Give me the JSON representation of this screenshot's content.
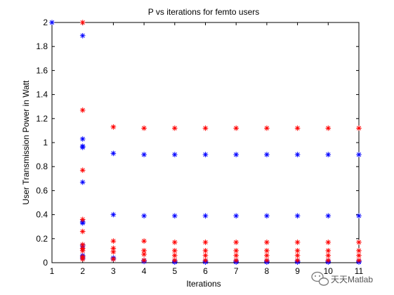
{
  "chart_data": {
    "type": "scatter",
    "title": "P vs iterations for femto users",
    "xlabel": "Iterations",
    "ylabel": "User Transmission Power in Watt",
    "xlim": [
      1,
      11
    ],
    "ylim": [
      0,
      2
    ],
    "xticks": [
      1,
      2,
      3,
      4,
      5,
      6,
      7,
      8,
      9,
      10,
      11
    ],
    "yticks": [
      0,
      0.2,
      0.4,
      0.6,
      0.8,
      1,
      1.2,
      1.4,
      1.6,
      1.8,
      2
    ],
    "ytick_labels": [
      "0",
      "0.2",
      "0.4",
      "0.6",
      "0.8",
      "1",
      "1.2",
      "1.4",
      "1.6",
      "1.8",
      "2"
    ],
    "marker": "*",
    "grid": false,
    "box": true,
    "series": [
      {
        "color": "#0000ff",
        "points": [
          [
            1,
            2.0
          ],
          [
            2,
            1.89
          ],
          [
            2,
            1.03
          ],
          [
            2,
            0.97
          ],
          [
            2,
            0.96
          ],
          [
            2,
            0.67
          ],
          [
            2,
            0.34
          ],
          [
            2,
            0.33
          ],
          [
            2,
            0.14
          ],
          [
            2,
            0.12
          ],
          [
            2,
            0.06
          ],
          [
            2,
            0.04
          ],
          [
            3,
            0.91
          ],
          [
            3,
            0.4
          ],
          [
            3,
            0.04
          ],
          [
            3,
            0.03
          ],
          [
            4,
            0.9
          ],
          [
            4,
            0.39
          ],
          [
            4,
            0.02
          ],
          [
            4,
            0.01
          ],
          [
            5,
            0.9
          ],
          [
            5,
            0.39
          ],
          [
            5,
            0.01
          ],
          [
            5,
            0.005
          ],
          [
            6,
            0.9
          ],
          [
            6,
            0.39
          ],
          [
            6,
            0.01
          ],
          [
            6,
            0.005
          ],
          [
            7,
            0.9
          ],
          [
            7,
            0.39
          ],
          [
            7,
            0.01
          ],
          [
            7,
            0.005
          ],
          [
            8,
            0.9
          ],
          [
            8,
            0.39
          ],
          [
            8,
            0.01
          ],
          [
            8,
            0.005
          ],
          [
            9,
            0.9
          ],
          [
            9,
            0.39
          ],
          [
            9,
            0.01
          ],
          [
            9,
            0.005
          ],
          [
            10,
            0.9
          ],
          [
            10,
            0.39
          ],
          [
            10,
            0.01
          ],
          [
            10,
            0.005
          ],
          [
            11,
            0.9
          ],
          [
            11,
            0.39
          ],
          [
            11,
            0.01
          ],
          [
            11,
            0.005
          ]
        ]
      },
      {
        "color": "#ff0000",
        "points": [
          [
            2,
            2.0
          ],
          [
            2,
            1.27
          ],
          [
            2,
            0.77
          ],
          [
            2,
            0.36
          ],
          [
            2,
            0.26
          ],
          [
            2,
            0.15
          ],
          [
            2,
            0.12
          ],
          [
            2,
            0.1
          ],
          [
            2,
            0.05
          ],
          [
            2,
            0.03
          ],
          [
            3,
            1.13
          ],
          [
            3,
            0.18
          ],
          [
            3,
            0.12
          ],
          [
            3,
            0.09
          ],
          [
            3,
            0.03
          ],
          [
            4,
            1.12
          ],
          [
            4,
            0.18
          ],
          [
            4,
            0.1
          ],
          [
            4,
            0.07
          ],
          [
            4,
            0.02
          ],
          [
            5,
            1.12
          ],
          [
            5,
            0.17
          ],
          [
            5,
            0.1
          ],
          [
            5,
            0.06
          ],
          [
            5,
            0.02
          ],
          [
            6,
            1.12
          ],
          [
            6,
            0.17
          ],
          [
            6,
            0.1
          ],
          [
            6,
            0.06
          ],
          [
            6,
            0.02
          ],
          [
            7,
            1.12
          ],
          [
            7,
            0.17
          ],
          [
            7,
            0.1
          ],
          [
            7,
            0.06
          ],
          [
            7,
            0.02
          ],
          [
            8,
            1.12
          ],
          [
            8,
            0.17
          ],
          [
            8,
            0.1
          ],
          [
            8,
            0.06
          ],
          [
            8,
            0.02
          ],
          [
            9,
            1.12
          ],
          [
            9,
            0.17
          ],
          [
            9,
            0.1
          ],
          [
            9,
            0.06
          ],
          [
            9,
            0.02
          ],
          [
            10,
            1.12
          ],
          [
            10,
            0.17
          ],
          [
            10,
            0.1
          ],
          [
            10,
            0.06
          ],
          [
            10,
            0.02
          ],
          [
            11,
            1.12
          ],
          [
            11,
            0.17
          ],
          [
            11,
            0.1
          ],
          [
            11,
            0.06
          ],
          [
            11,
            0.02
          ]
        ]
      }
    ]
  },
  "watermark": {
    "text": "天天Matlab",
    "icon": "wechat-icon"
  }
}
